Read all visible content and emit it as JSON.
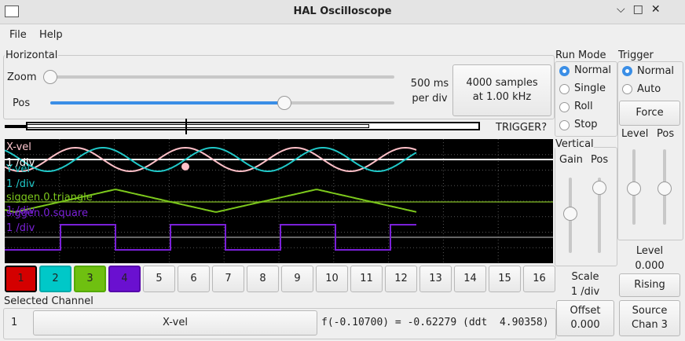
{
  "window": {
    "title": "HAL Oscilloscope"
  },
  "menu": [
    "File",
    "Help"
  ],
  "horizontal": {
    "title": "Horizontal",
    "zoom_label": "Zoom",
    "pos_label": "Pos",
    "scale": [
      "500 ms",
      "per div"
    ],
    "samples": [
      "4000 samples",
      "at 1.00 kHz"
    ],
    "trigger_status": "TRIGGER?"
  },
  "scope": {
    "labels": [
      "X-vel",
      "1 /div",
      "Y-vel",
      "1 /div",
      "siggen.0.triangle",
      "1 /div",
      "siggen.0.square",
      "1 /div"
    ]
  },
  "channels": [
    "1",
    "2",
    "3",
    "4",
    "5",
    "6",
    "7",
    "8",
    "9",
    "10",
    "11",
    "12",
    "13",
    "14",
    "15",
    "16"
  ],
  "selected": {
    "title": "Selected Channel",
    "number": "1",
    "name": "X-vel",
    "readout": "f(-0.10700) = -0.62279 (ddt  4.90358)"
  },
  "run_mode": {
    "title": "Run Mode",
    "options": [
      "Normal",
      "Single",
      "Roll",
      "Stop"
    ]
  },
  "vertical": {
    "title": "Vertical",
    "gain_label": "Gain",
    "pos_label": "Pos",
    "scale": [
      "Scale",
      "1 /div"
    ],
    "offset": [
      "Offset",
      "0.000"
    ]
  },
  "trigger": {
    "title": "Trigger",
    "options": [
      "Normal",
      "Auto"
    ],
    "force": "Force",
    "level_label": "Level",
    "pos_label": "Pos",
    "level": [
      "Level",
      "0.000"
    ],
    "edge": "Rising",
    "source": [
      "Source",
      "Chan 3"
    ]
  }
}
